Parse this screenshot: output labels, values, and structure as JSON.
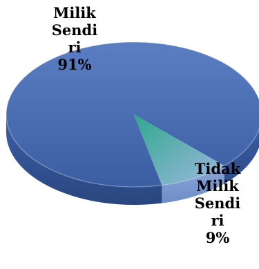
{
  "chart_data": {
    "type": "pie",
    "title": "",
    "slices": [
      {
        "label": "Milik Sendiri",
        "value": 91,
        "value_label": "91%",
        "color": "#4a6db3"
      },
      {
        "label": "Tidak Milik Sendiri",
        "value": 9,
        "value_label": "9%",
        "color": "#2e9f8a"
      }
    ],
    "labels_display": [
      "Milik\nSendi\nri\n91%",
      "Tidak\nMilik\nSendi\nri\n9%"
    ],
    "style": "3d",
    "legend": "none"
  }
}
